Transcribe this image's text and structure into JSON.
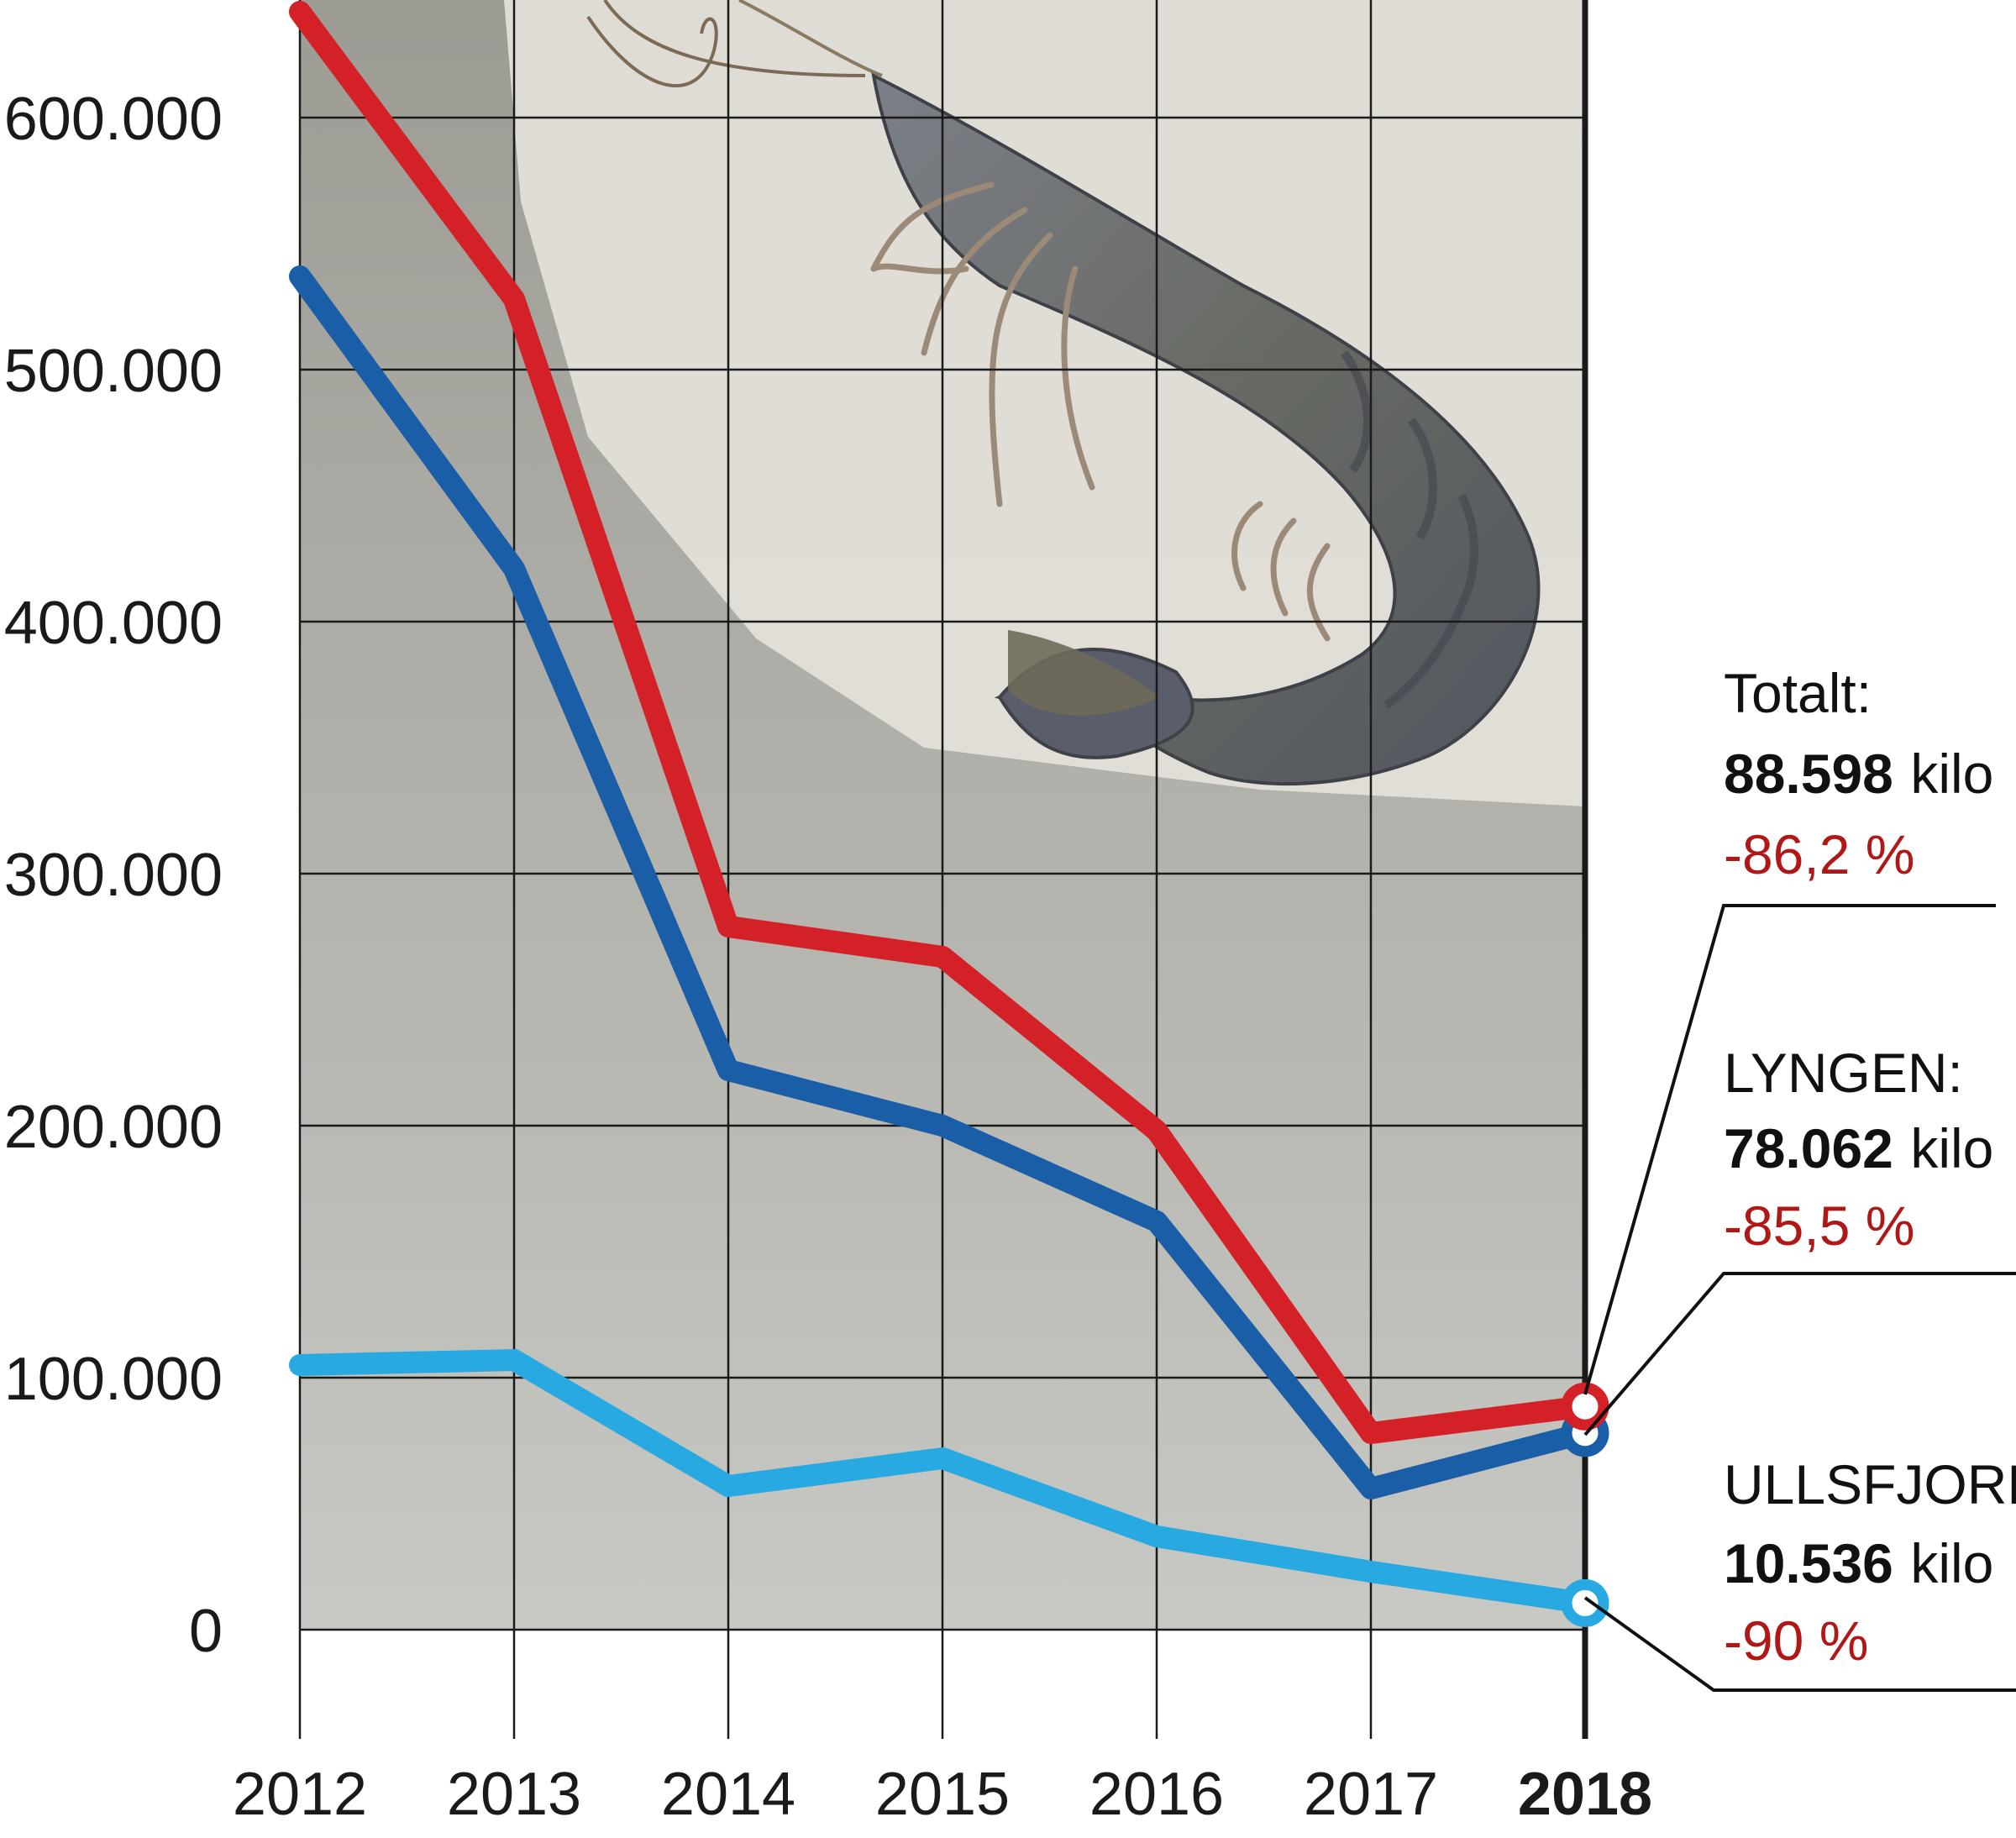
{
  "chart_data": {
    "type": "line",
    "title": "",
    "xlabel": "",
    "ylabel": "",
    "x": [
      "2012",
      "2013",
      "2014",
      "2015",
      "2016",
      "2017",
      "2018"
    ],
    "highlight_x": "2018",
    "ylim": [
      0,
      650000
    ],
    "yticks": [
      0,
      100000,
      200000,
      300000,
      400000,
      500000,
      600000
    ],
    "ytick_labels": [
      "0",
      "100.000",
      "200.000",
      "300.000",
      "400.000",
      "500.000",
      "600.000"
    ],
    "grid": true,
    "series": [
      {
        "name": "Totalt",
        "color": "#d42027",
        "values": [
          642000,
          528000,
          279000,
          267000,
          198000,
          78000,
          88598
        ]
      },
      {
        "name": "LYNGEN",
        "color": "#1a5ea8",
        "values": [
          537000,
          421000,
          222000,
          200000,
          162000,
          56000,
          78062
        ]
      },
      {
        "name": "ULLSFJORD",
        "color": "#29a9e1",
        "values": [
          105000,
          107000,
          57000,
          68000,
          37000,
          23000,
          10536
        ]
      }
    ],
    "annotations": [
      {
        "label": "Totalt:",
        "value_bold": "88.598",
        "unit": "kilo",
        "pct": "-86,2 %"
      },
      {
        "label": "LYNGEN:",
        "value_bold": "78.062",
        "unit": "kilo",
        "pct": "-85,5 %"
      },
      {
        "label": "ULLSFJORD:",
        "value_bold": "10.536",
        "unit": "kilo",
        "pct": "-90 %"
      }
    ],
    "colors": {
      "plot_bg": "#c9c9c4",
      "photo_bg": "#e6e4dc",
      "grid": "#1a1a1a",
      "pct_text": "#b01818"
    }
  }
}
